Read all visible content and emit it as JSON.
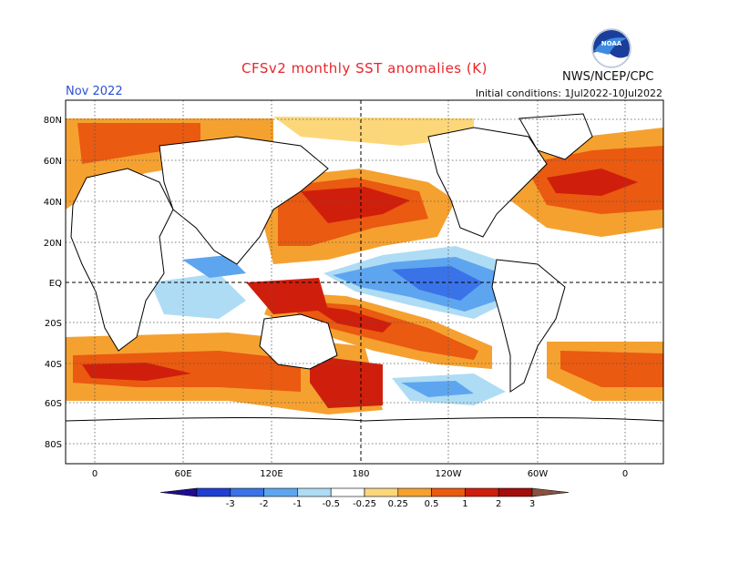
{
  "header": {
    "title": "CFSv2 monthly SST anomalies (K)",
    "valid_month": "Nov 2022",
    "agency": "NWS/NCEP/CPC",
    "logo_text": "NOAA",
    "initial_conditions": "Initial conditions: 1Jul2022-10Jul2022"
  },
  "map": {
    "lat_labels": [
      "80N",
      "60N",
      "40N",
      "20N",
      "EQ",
      "20S",
      "40S",
      "60S",
      "80S"
    ],
    "lon_labels": [
      "0",
      "60E",
      "120E",
      "180",
      "120W",
      "60W",
      "0"
    ],
    "grid_lines": "dotted"
  },
  "legend": {
    "tick_labels": [
      "-3",
      "-2",
      "-1",
      "-0.5",
      "-0.25",
      "0.25",
      "0.5",
      "1",
      "2",
      "3"
    ],
    "colors": [
      "#1f0d8f",
      "#1e3fd2",
      "#3a72e8",
      "#5ea5f0",
      "#aedcf5",
      "#ffffff",
      "#fcd77a",
      "#f5a130",
      "#ea5a10",
      "#cf1f0c",
      "#a40d0a",
      "#8a5040"
    ]
  },
  "colors": {
    "title": "#e8262b",
    "month": "#2a4fd6"
  }
}
